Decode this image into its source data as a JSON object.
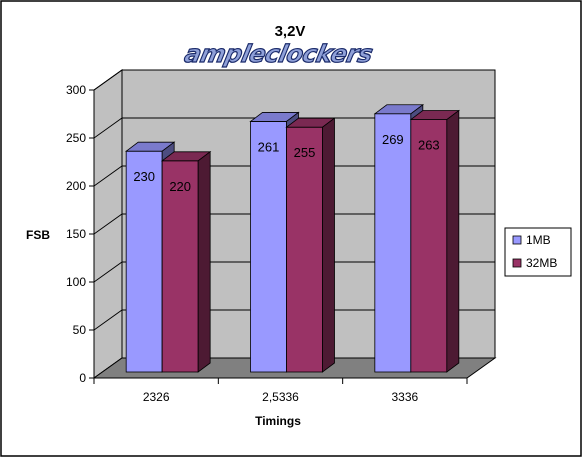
{
  "chart_data": {
    "type": "bar",
    "title": "3,2V",
    "watermark": "ampleclockers",
    "xlabel": "Timings",
    "ylabel": "FSB",
    "categories": [
      "2326",
      "2,5336",
      "3336"
    ],
    "ylim": [
      0,
      300
    ],
    "yticks": [
      0,
      50,
      100,
      150,
      200,
      250,
      300
    ],
    "series": [
      {
        "name": "1MB",
        "values": [
          230,
          261,
          269
        ],
        "color": "#9999ff"
      },
      {
        "name": "32MB",
        "values": [
          220,
          255,
          263
        ],
        "color": "#993366"
      }
    ],
    "grid": true,
    "legend": "right",
    "plot_area_color": "#c0c0c0",
    "floor_color": "#808080",
    "three_d": true
  }
}
